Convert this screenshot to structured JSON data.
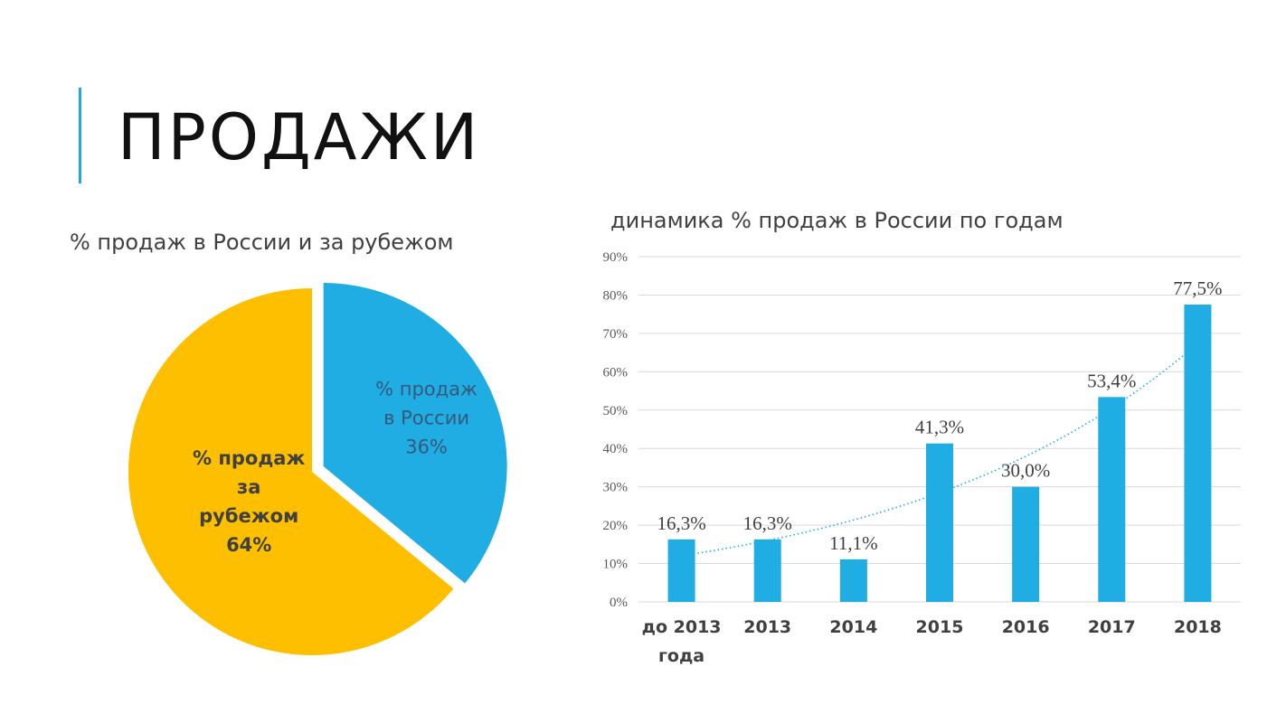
{
  "slide": {
    "title": "ПРОДАЖИ",
    "accent_color": "#1ca8e0"
  },
  "chart_data": [
    {
      "type": "pie",
      "title": "% продаж в России и за рубежом",
      "slices": [
        {
          "label_lines": [
            "% продаж",
            "в России",
            "36%"
          ],
          "value": 36,
          "color": "#1fade3",
          "exploded": true,
          "label_color": "#355a7a",
          "label_bold": false
        },
        {
          "label_lines": [
            "% продаж",
            "за",
            "рубежом",
            "64%"
          ],
          "value": 64,
          "color": "#fdbf00",
          "exploded": false,
          "label_color": "#404040",
          "label_bold": true
        }
      ]
    },
    {
      "type": "bar",
      "title": "динамика % продаж в России по годам",
      "categories": [
        [
          "до 2013",
          "года"
        ],
        [
          "2013"
        ],
        [
          "2014"
        ],
        [
          "2015"
        ],
        [
          "2016"
        ],
        [
          "2017"
        ],
        [
          "2018"
        ]
      ],
      "values": [
        16.3,
        16.3,
        11.1,
        41.3,
        30.0,
        53.4,
        77.5
      ],
      "data_labels": [
        "16,3%",
        "16,3%",
        "11,1%",
        "41,3%",
        "30,0%",
        "53,4%",
        "77,5%"
      ],
      "y_ticks": [
        "0%",
        "10%",
        "20%",
        "30%",
        "40%",
        "50%",
        "60%",
        "70%",
        "80%",
        "90%"
      ],
      "ylim": [
        0,
        90
      ],
      "bar_color": "#1fade3",
      "grid": true,
      "trendline": "exponential, dotted",
      "xlabel": "",
      "ylabel": ""
    }
  ]
}
